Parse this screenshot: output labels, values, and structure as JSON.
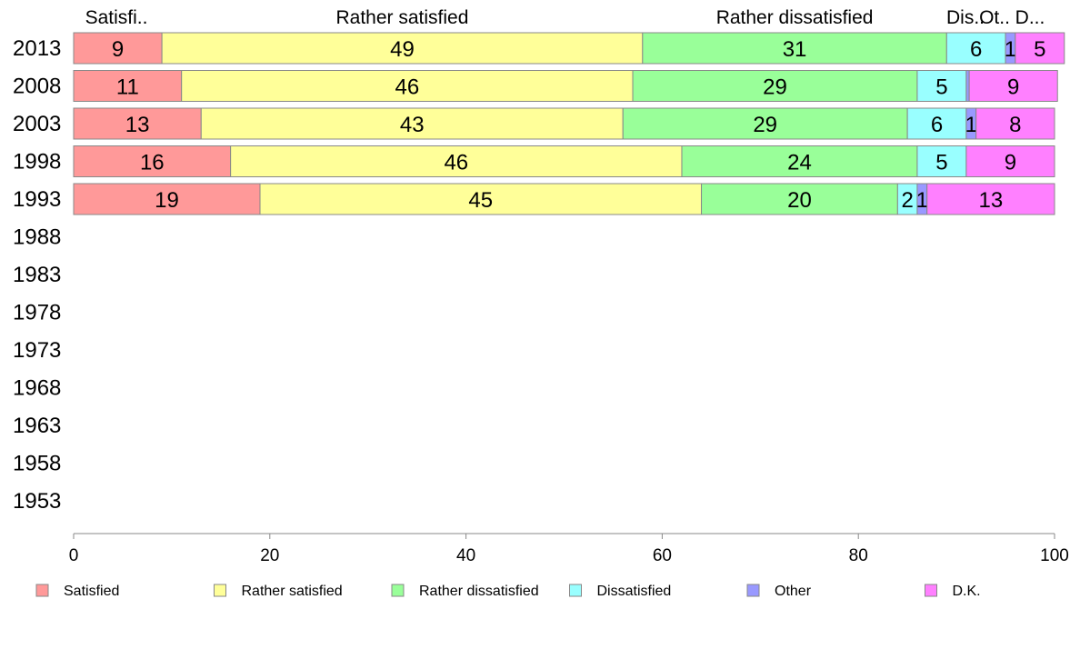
{
  "chart_data": {
    "type": "bar",
    "orientation": "horizontal",
    "stacked": true,
    "categories": [
      "2013",
      "2008",
      "2003",
      "1998",
      "1993",
      "1988",
      "1983",
      "1978",
      "1973",
      "1968",
      "1963",
      "1958",
      "1953"
    ],
    "series": [
      {
        "name": "Satisfied",
        "color": "#ff9999",
        "top_label": "Satisfi..",
        "values": [
          9,
          11,
          13,
          16,
          19,
          null,
          null,
          null,
          null,
          null,
          null,
          null,
          null
        ]
      },
      {
        "name": "Rather satisfied",
        "color": "#ffff99",
        "top_label": "Rather satisfied",
        "values": [
          49,
          46,
          43,
          46,
          45,
          null,
          null,
          null,
          null,
          null,
          null,
          null,
          null
        ]
      },
      {
        "name": "Rather dissatisfied",
        "color": "#99ff99",
        "top_label": "Rather dissatisfied",
        "values": [
          31,
          29,
          29,
          24,
          20,
          null,
          null,
          null,
          null,
          null,
          null,
          null,
          null
        ]
      },
      {
        "name": "Dissatisfied",
        "color": "#99ffff",
        "top_label": "Dis..",
        "values": [
          6,
          5,
          6,
          5,
          2,
          null,
          null,
          null,
          null,
          null,
          null,
          null,
          null
        ]
      },
      {
        "name": "Other",
        "color": "#9999ff",
        "top_label": "Ot..",
        "values": [
          1,
          0.3,
          1,
          0,
          1,
          null,
          null,
          null,
          null,
          null,
          null,
          null,
          null
        ]
      },
      {
        "name": "D.K.",
        "color": "#ff80ff",
        "top_label": "D...",
        "values": [
          5,
          9,
          8,
          9,
          13,
          null,
          null,
          null,
          null,
          null,
          null,
          null,
          null
        ]
      }
    ],
    "bar_labels": [
      [
        "9",
        "49",
        "31",
        "6",
        "1",
        "5"
      ],
      [
        "11",
        "46",
        "29",
        "5",
        "",
        "9"
      ],
      [
        "13",
        "43",
        "29",
        "6",
        "1",
        "8"
      ],
      [
        "16",
        "46",
        "24",
        "5",
        "",
        "9"
      ],
      [
        "19",
        "45",
        "20",
        "2",
        "1",
        "13"
      ]
    ],
    "xlim": [
      0,
      100
    ],
    "xticks": [
      "0",
      "20",
      "40",
      "60",
      "80",
      "100"
    ],
    "grid": false,
    "legend_position": "bottom"
  }
}
